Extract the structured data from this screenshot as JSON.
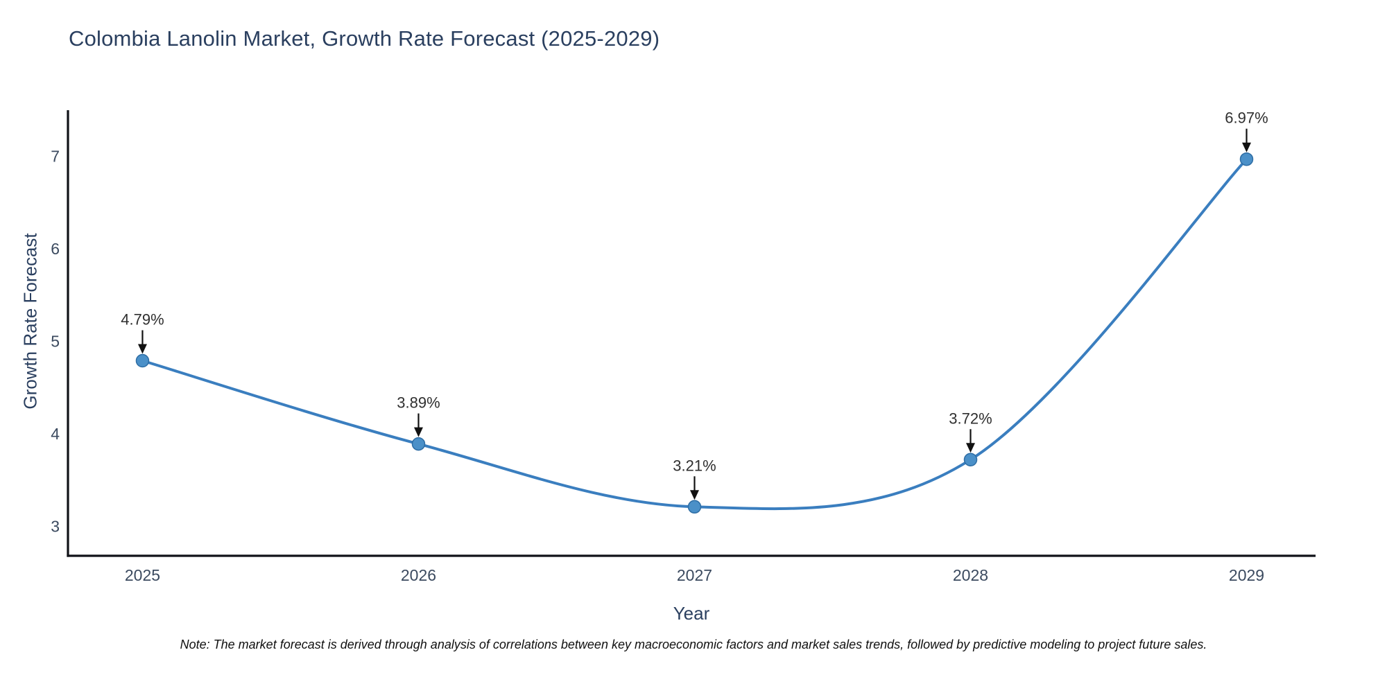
{
  "note": "Note: The market forecast is derived through analysis of correlations between key macroeconomic factors and market sales trends, followed by predictive modeling to project future sales.",
  "chart_data": {
    "type": "line",
    "title": "Colombia Lanolin Market, Growth Rate Forecast (2025-2029)",
    "xlabel": "Year",
    "ylabel": "Growth Rate Forecast",
    "categories": [
      "2025",
      "2026",
      "2027",
      "2028",
      "2029"
    ],
    "x": [
      2025,
      2026,
      2027,
      2028,
      2029
    ],
    "values": [
      4.79,
      3.89,
      3.21,
      3.72,
      6.97
    ],
    "point_labels": [
      "4.79%",
      "3.89%",
      "3.21%",
      "3.72%",
      "6.97%"
    ],
    "yticks": [
      3,
      4,
      5,
      6,
      7
    ],
    "xlim": [
      2024.73,
      2029.25
    ],
    "ylim": [
      2.68,
      7.5
    ],
    "line_shape": "spline",
    "grid": false,
    "legend": "none",
    "marker_size": 9,
    "colors": {
      "line": "#3a7ebf",
      "marker_fill": "#4b90c8",
      "marker_stroke": "#2e6da4",
      "axis": "#101218",
      "tick_label": "#3b4a5f",
      "title": "#2a3f5f",
      "annotation_text": "#2f2f2f",
      "arrow": "#111111",
      "background": "#ffffff"
    }
  }
}
